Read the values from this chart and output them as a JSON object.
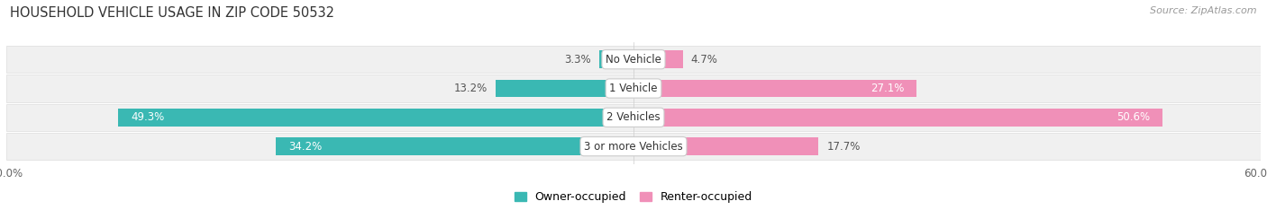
{
  "title": "HOUSEHOLD VEHICLE USAGE IN ZIP CODE 50532",
  "source": "Source: ZipAtlas.com",
  "categories": [
    "No Vehicle",
    "1 Vehicle",
    "2 Vehicles",
    "3 or more Vehicles"
  ],
  "owner_values": [
    3.3,
    13.2,
    49.3,
    34.2
  ],
  "renter_values": [
    4.7,
    27.1,
    50.6,
    17.7
  ],
  "owner_color": "#3ab8b3",
  "renter_color": "#f090b8",
  "row_bg_color": "#f0f0f0",
  "axis_max": 60.0,
  "owner_label": "Owner-occupied",
  "renter_label": "Renter-occupied",
  "title_fontsize": 10.5,
  "source_fontsize": 8,
  "bar_label_fontsize": 8.5,
  "category_fontsize": 8.5,
  "legend_fontsize": 9,
  "axis_fontsize": 8.5
}
